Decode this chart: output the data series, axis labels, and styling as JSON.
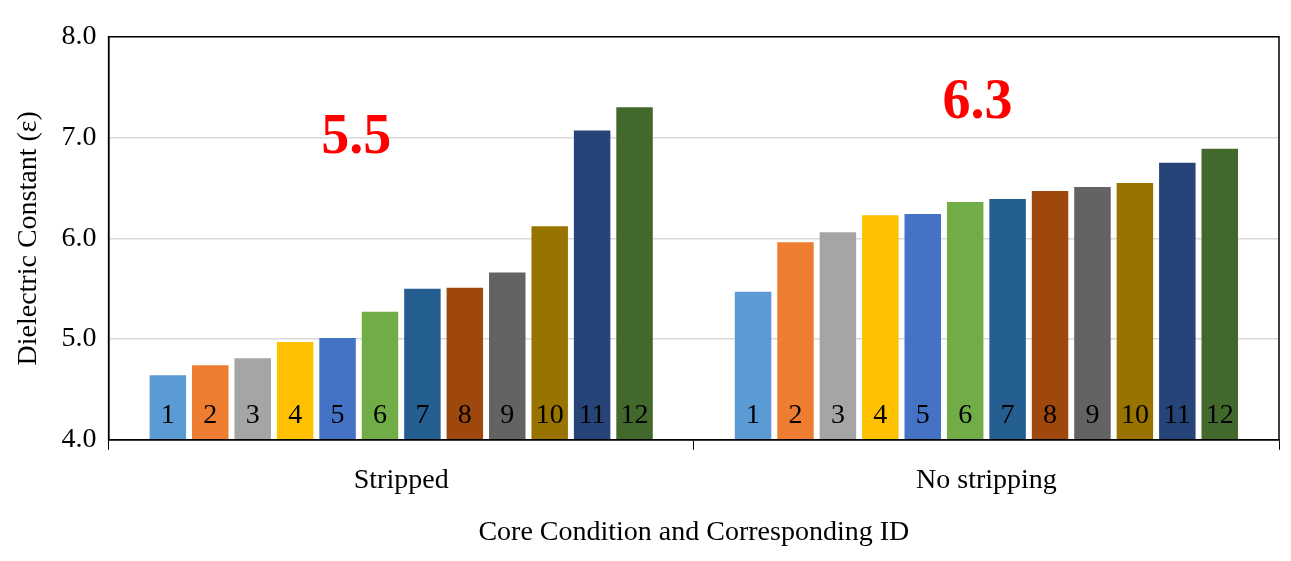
{
  "chart_data": {
    "type": "bar",
    "xlabel": "Core Condition and Corresponding ID",
    "ylabel": "Dielectric Constant (ε)",
    "categories": [
      "Stripped",
      "No stripping"
    ],
    "series": [
      {
        "name": "1",
        "color": "#5b9bd5",
        "values": [
          4.64,
          5.47
        ]
      },
      {
        "name": "2",
        "color": "#ed7d31",
        "values": [
          4.74,
          5.96
        ]
      },
      {
        "name": "3",
        "color": "#a5a5a5",
        "values": [
          4.81,
          6.06
        ]
      },
      {
        "name": "4",
        "color": "#ffc000",
        "values": [
          4.97,
          6.23
        ]
      },
      {
        "name": "5",
        "color": "#4472c4",
        "values": [
          5.01,
          6.24
        ]
      },
      {
        "name": "6",
        "color": "#70ad47",
        "values": [
          5.27,
          6.36
        ]
      },
      {
        "name": "7",
        "color": "#255e91",
        "values": [
          5.5,
          6.39
        ]
      },
      {
        "name": "8",
        "color": "#9e480e",
        "values": [
          5.51,
          6.47
        ]
      },
      {
        "name": "9",
        "color": "#636363",
        "values": [
          5.66,
          6.51
        ]
      },
      {
        "name": "10",
        "color": "#997300",
        "values": [
          6.12,
          6.55
        ]
      },
      {
        "name": "11",
        "color": "#264478",
        "values": [
          7.07,
          6.75
        ]
      },
      {
        "name": "12",
        "color": "#43682b",
        "values": [
          7.3,
          6.89
        ]
      }
    ],
    "annotations": [
      "5.5",
      "6.3"
    ],
    "ylim": [
      4,
      8
    ],
    "yticks": [
      {
        "value": 4,
        "label": "4.0"
      },
      {
        "value": 5,
        "label": "5.0"
      },
      {
        "value": 6,
        "label": "6.0"
      },
      {
        "value": 7,
        "label": "7.0"
      },
      {
        "value": 8,
        "label": "8.0"
      }
    ],
    "grid": "y",
    "legend": false
  }
}
